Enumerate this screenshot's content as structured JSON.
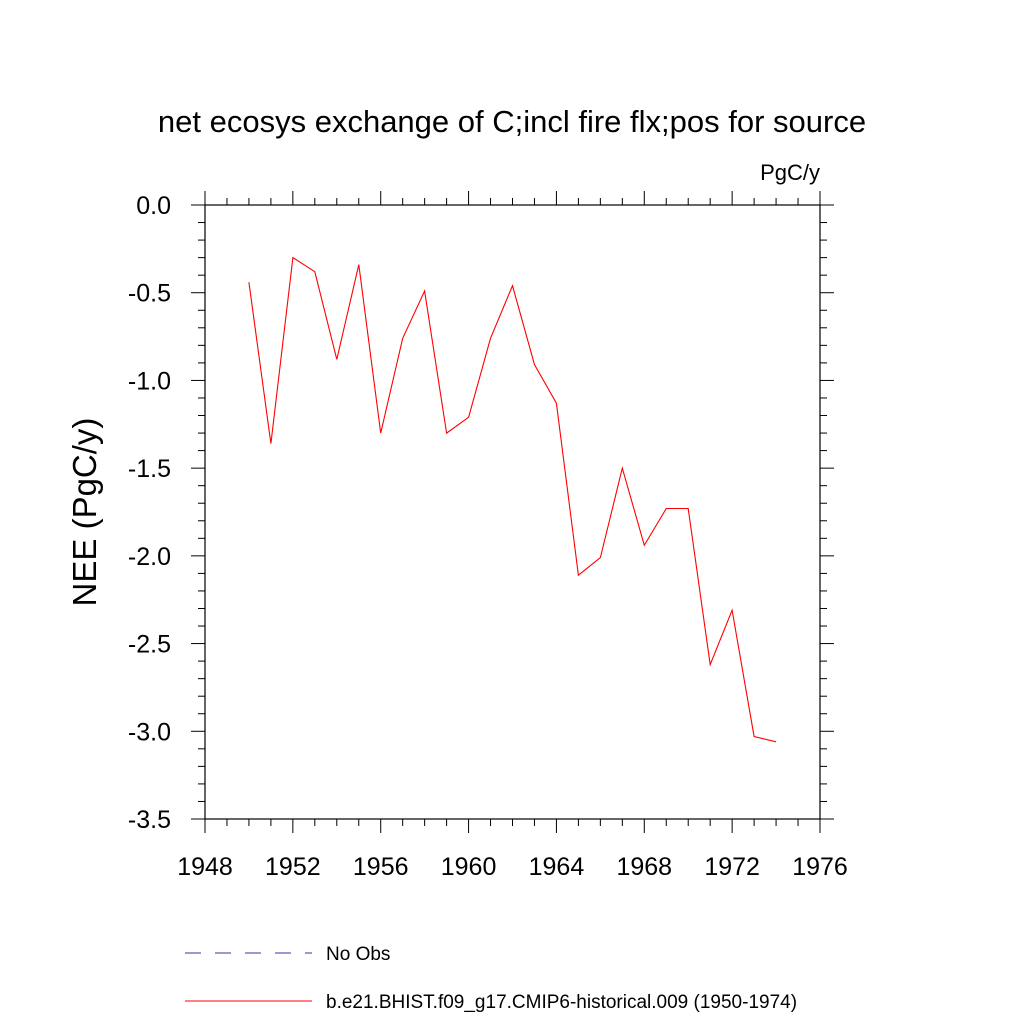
{
  "chart_data": {
    "type": "line",
    "title": "net ecosys exchange of C;incl fire flx;pos for source",
    "units_label": "PgC/y",
    "ylabel": "NEE  (PgC/y)",
    "xlabel": "",
    "xlim": [
      1948,
      1976
    ],
    "ylim": [
      -3.5,
      0.0
    ],
    "x_ticks": [
      1948,
      1952,
      1956,
      1960,
      1964,
      1968,
      1972,
      1976
    ],
    "y_ticks": [
      0.0,
      -0.5,
      -1.0,
      -1.5,
      -2.0,
      -2.5,
      -3.0,
      -3.5
    ],
    "x_tick_labels": [
      "1948",
      "1952",
      "1956",
      "1960",
      "1964",
      "1968",
      "1972",
      "1976"
    ],
    "y_tick_labels": [
      "0.0",
      "-0.5",
      "-1.0",
      "-1.5",
      "-2.0",
      "-2.5",
      "-3.0",
      "-3.5"
    ],
    "grid": false,
    "legend_position": "bottom",
    "series": [
      {
        "name": "No Obs",
        "color": "#3333aa",
        "style": "dashed",
        "x": [],
        "values": []
      },
      {
        "name": "b.e21.BHIST.f09_g17.CMIP6-historical.009 (1950-1974)",
        "color": "#ff0000",
        "style": "solid",
        "x": [
          1950,
          1951,
          1952,
          1953,
          1954,
          1955,
          1956,
          1957,
          1958,
          1959,
          1960,
          1961,
          1962,
          1963,
          1964,
          1965,
          1966,
          1967,
          1968,
          1969,
          1970,
          1971,
          1972,
          1973,
          1974
        ],
        "values": [
          -0.44,
          -1.36,
          -0.3,
          -0.38,
          -0.88,
          -0.34,
          -1.3,
          -0.76,
          -0.49,
          -1.3,
          -1.21,
          -0.76,
          -0.46,
          -0.91,
          -1.13,
          -2.11,
          -2.01,
          -1.5,
          -1.94,
          -1.73,
          -1.73,
          -2.62,
          -2.31,
          -3.03,
          -3.06
        ]
      }
    ]
  }
}
